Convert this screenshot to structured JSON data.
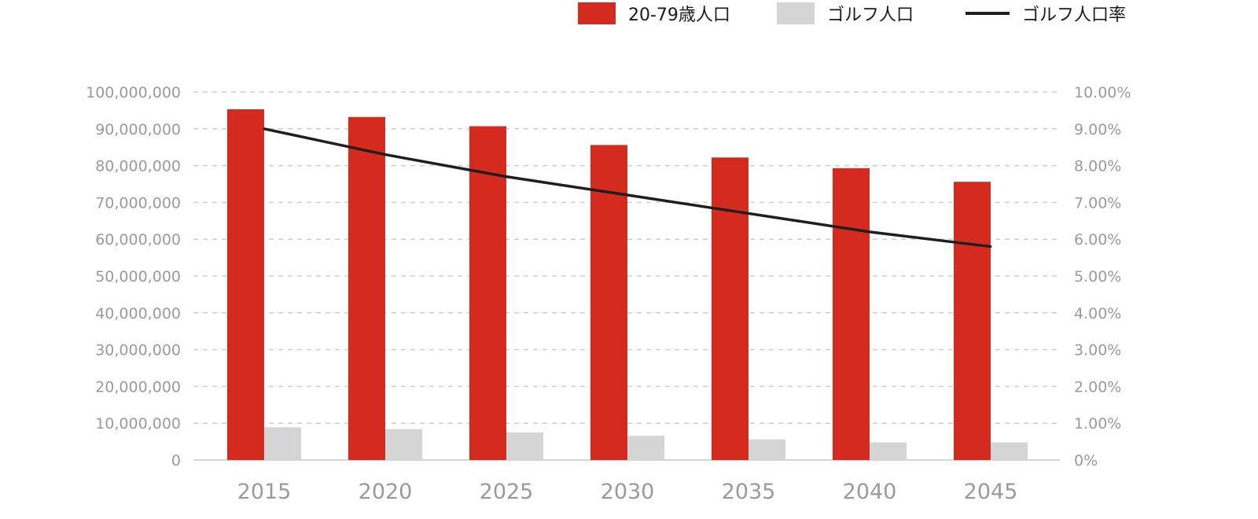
{
  "chart_data": {
    "type": "bar",
    "categories": [
      "2015",
      "2020",
      "2025",
      "2030",
      "2035",
      "2040",
      "2045"
    ],
    "series": [
      {
        "name": "20-79歳人口",
        "kind": "bar",
        "axis": "left",
        "color": "#d42b1e",
        "values": [
          95300000,
          93200000,
          90700000,
          85600000,
          82200000,
          79300000,
          75600000
        ]
      },
      {
        "name": "ゴルフ人口",
        "kind": "bar",
        "axis": "left",
        "color": "#d5d5d5",
        "values": [
          8900000,
          8400000,
          7500000,
          6600000,
          5600000,
          4800000,
          4800000
        ]
      },
      {
        "name": "ゴルフ人口率",
        "kind": "line",
        "axis": "right",
        "color": "#1f1f1f",
        "values": [
          9.0,
          8.3,
          7.7,
          7.2,
          6.7,
          6.2,
          5.8
        ]
      }
    ],
    "y_left": {
      "ylim": [
        0,
        100000000
      ],
      "ticks": [
        0,
        10000000,
        20000000,
        30000000,
        40000000,
        50000000,
        60000000,
        70000000,
        80000000,
        90000000,
        100000000
      ],
      "tick_labels": [
        "0",
        "10,000,000",
        "20,000,000",
        "30,000,000",
        "40,000,000",
        "50,000,000",
        "60,000,000",
        "70,000,000",
        "80,000,000",
        "90,000,000",
        "100,000,000"
      ]
    },
    "y_right": {
      "ylim": [
        0,
        10
      ],
      "ticks": [
        0,
        1,
        2,
        3,
        4,
        5,
        6,
        7,
        8,
        9,
        10
      ],
      "tick_labels": [
        "0%",
        "1.00%",
        "2.00%",
        "3.00%",
        "4.00%",
        "5.00%",
        "6.00%",
        "7.00%",
        "8.00%",
        "9.00%",
        "10.00%"
      ]
    },
    "grid": true,
    "legend_position": "top-right"
  }
}
